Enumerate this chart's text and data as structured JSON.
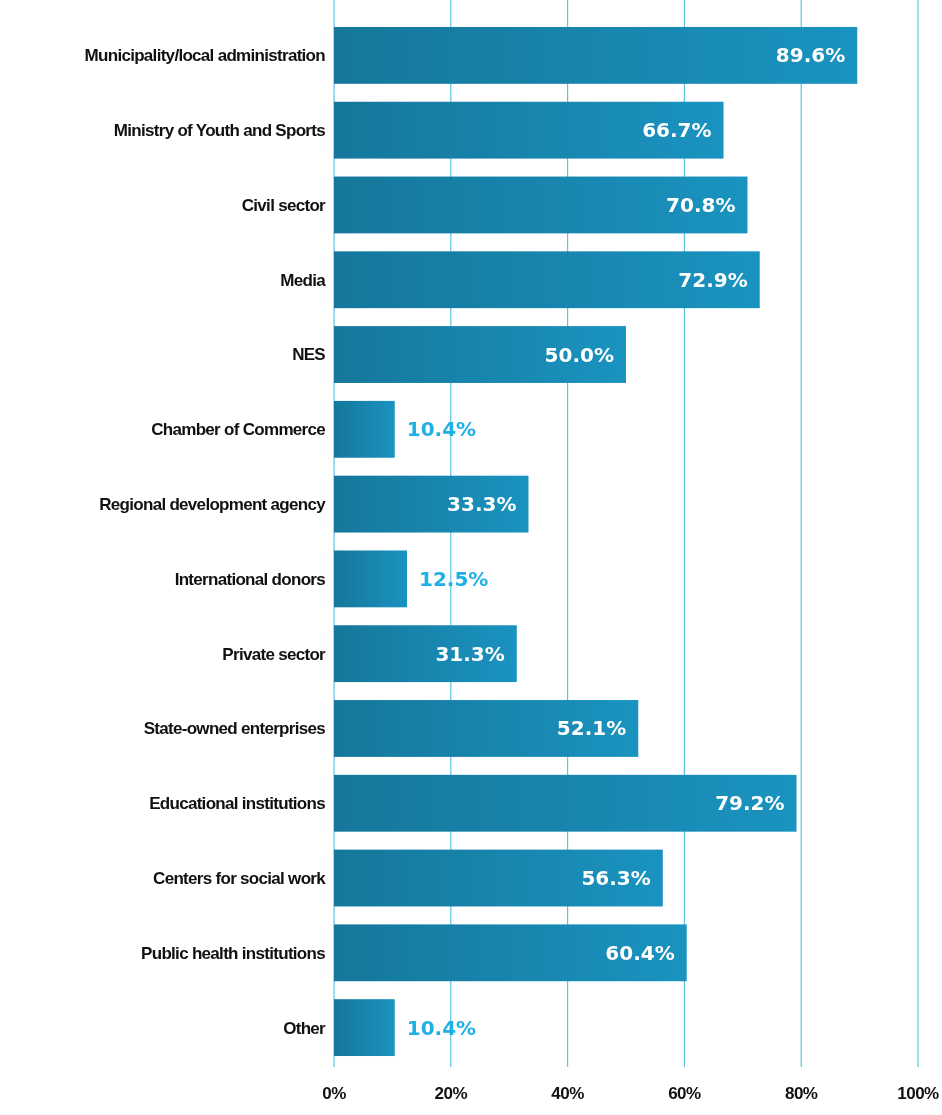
{
  "chart_data": {
    "type": "bar",
    "orientation": "horizontal",
    "categories": [
      "Municipality/local administration",
      "Ministry of Youth and Sports",
      "Civil sector",
      "Media",
      "NES",
      "Chamber of Commerce",
      "Regional development agency",
      "International donors",
      "Private sector",
      "State-owned enterprises",
      "Educational institutions",
      "Centers for social work",
      "Public health institutions",
      "Other"
    ],
    "values": [
      89.6,
      66.7,
      70.8,
      72.9,
      50.0,
      10.4,
      33.3,
      12.5,
      31.3,
      52.1,
      79.2,
      56.3,
      60.4,
      10.4
    ],
    "value_labels": [
      "89.6%",
      "66.7%",
      "70.8%",
      "72.9%",
      "50.0%",
      "10.4%",
      "33.3%",
      "12.5%",
      "31.3%",
      "52.1%",
      "79.2%",
      "56.3%",
      "60.4%",
      "10.4%"
    ],
    "color": "#1a93c0",
    "xlim": [
      0,
      100
    ],
    "xticks": [
      {
        "value": 0,
        "label": "0%"
      },
      {
        "value": 20,
        "label": "20%"
      },
      {
        "value": 40,
        "label": "40%"
      },
      {
        "value": 60,
        "label": "60%"
      },
      {
        "value": 80,
        "label": "80%"
      },
      {
        "value": 100,
        "label": "100%"
      }
    ],
    "grid": "x"
  }
}
